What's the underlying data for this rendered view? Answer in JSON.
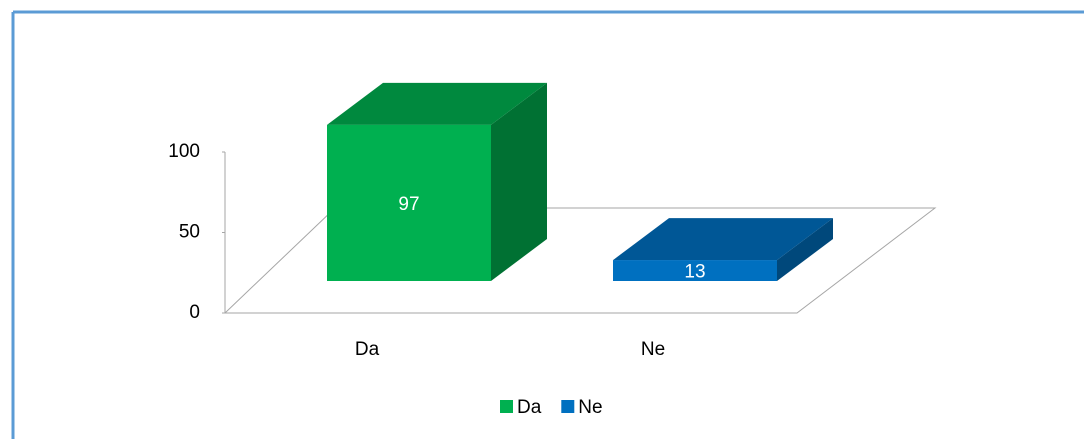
{
  "chart_data": {
    "type": "bar3d",
    "categories": [
      "Da",
      "Ne"
    ],
    "series": [
      {
        "name": "Da",
        "color": "#00b050",
        "values": [
          97,
          null
        ]
      },
      {
        "name": "Ne",
        "color": "#0070c0",
        "values": [
          null,
          13
        ]
      }
    ],
    "ylim": [
      0,
      100
    ],
    "yticks": [
      0,
      50,
      100
    ],
    "legend": "bottom"
  }
}
